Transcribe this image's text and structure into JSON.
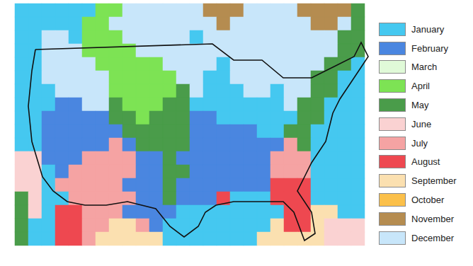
{
  "chart_data": {
    "type": "heatmap",
    "legend": "right",
    "tick_labels": false,
    "categories": [
      "January",
      "February",
      "March",
      "April",
      "May",
      "June",
      "July",
      "August",
      "September",
      "October",
      "November",
      "December"
    ],
    "colors": [
      "#45c8f0",
      "#4a86e0",
      "#e0fad8",
      "#7de354",
      "#4a9c4a",
      "#fad2d2",
      "#f5a3a3",
      "#ee4850",
      "#fbe0b0",
      "#fbc04a",
      "#b58c50",
      "#c8e6fa"
    ],
    "cells": [
      [
        1,
        1,
        1,
        1,
        1,
        1,
        4,
        4,
        12,
        12,
        12,
        12,
        12,
        12,
        11,
        11,
        11,
        12,
        12,
        12,
        12,
        11,
        11,
        11,
        11,
        5
      ],
      [
        1,
        1,
        1,
        1,
        1,
        4,
        4,
        12,
        12,
        12,
        12,
        12,
        12,
        12,
        12,
        11,
        12,
        12,
        12,
        12,
        12,
        12,
        11,
        11,
        12,
        5
      ],
      [
        1,
        1,
        12,
        12,
        1,
        4,
        4,
        4,
        12,
        12,
        12,
        12,
        12,
        1,
        12,
        12,
        12,
        12,
        12,
        12,
        12,
        12,
        12,
        12,
        5,
        5
      ],
      [
        1,
        1,
        12,
        12,
        12,
        4,
        4,
        4,
        4,
        12,
        12,
        12,
        12,
        12,
        12,
        12,
        12,
        12,
        12,
        12,
        12,
        12,
        12,
        12,
        5,
        5
      ],
      [
        1,
        1,
        12,
        12,
        12,
        12,
        4,
        4,
        4,
        4,
        4,
        12,
        12,
        12,
        12,
        1,
        12,
        12,
        12,
        12,
        12,
        12,
        12,
        5,
        5,
        1
      ],
      [
        1,
        1,
        12,
        12,
        12,
        12,
        12,
        4,
        4,
        4,
        4,
        4,
        12,
        12,
        1,
        1,
        12,
        12,
        12,
        12,
        12,
        12,
        5,
        5,
        1,
        1
      ],
      [
        1,
        1,
        1,
        12,
        12,
        12,
        12,
        4,
        4,
        4,
        4,
        4,
        5,
        12,
        1,
        1,
        1,
        12,
        12,
        1,
        12,
        12,
        5,
        5,
        1,
        1
      ],
      [
        1,
        1,
        1,
        2,
        2,
        12,
        12,
        5,
        4,
        4,
        4,
        5,
        5,
        1,
        1,
        1,
        1,
        1,
        1,
        1,
        12,
        5,
        5,
        1,
        1,
        1
      ],
      [
        1,
        1,
        2,
        2,
        2,
        2,
        2,
        5,
        5,
        4,
        5,
        5,
        5,
        2,
        2,
        1,
        1,
        1,
        1,
        1,
        1,
        5,
        5,
        1,
        1,
        1
      ],
      [
        1,
        1,
        2,
        2,
        2,
        2,
        2,
        2,
        5,
        5,
        5,
        5,
        5,
        2,
        2,
        2,
        2,
        2,
        1,
        1,
        5,
        5,
        1,
        1,
        1,
        1
      ],
      [
        1,
        1,
        2,
        2,
        2,
        2,
        2,
        7,
        2,
        5,
        5,
        5,
        5,
        2,
        2,
        2,
        2,
        2,
        2,
        2,
        7,
        5,
        1,
        1,
        1,
        1
      ],
      [
        6,
        6,
        2,
        2,
        2,
        7,
        7,
        7,
        7,
        2,
        2,
        5,
        2,
        2,
        2,
        2,
        2,
        2,
        2,
        7,
        7,
        7,
        1,
        1,
        1,
        1
      ],
      [
        6,
        6,
        1,
        2,
        7,
        7,
        7,
        7,
        7,
        2,
        2,
        5,
        5,
        2,
        2,
        2,
        2,
        2,
        2,
        7,
        7,
        7,
        1,
        1,
        1,
        1
      ],
      [
        6,
        6,
        1,
        7,
        7,
        7,
        7,
        7,
        2,
        2,
        2,
        5,
        2,
        2,
        2,
        2,
        2,
        2,
        2,
        8,
        8,
        8,
        1,
        1,
        1,
        1
      ],
      [
        5,
        6,
        1,
        1,
        7,
        7,
        7,
        7,
        7,
        2,
        2,
        5,
        2,
        2,
        2,
        8,
        1,
        1,
        1,
        8,
        8,
        8,
        1,
        1,
        1,
        1
      ],
      [
        5,
        6,
        1,
        8,
        8,
        7,
        7,
        7,
        2,
        2,
        2,
        2,
        1,
        1,
        1,
        1,
        1,
        1,
        1,
        1,
        8,
        8,
        9,
        9,
        1,
        1
      ],
      [
        5,
        1,
        1,
        8,
        8,
        7,
        7,
        9,
        9,
        7,
        2,
        1,
        1,
        1,
        1,
        1,
        1,
        1,
        1,
        9,
        8,
        8,
        9,
        6,
        6,
        6
      ],
      [
        5,
        1,
        1,
        8,
        8,
        7,
        9,
        9,
        9,
        9,
        9,
        1,
        1,
        1,
        1,
        1,
        1,
        1,
        9,
        9,
        9,
        9,
        9,
        6,
        6,
        6
      ]
    ]
  }
}
